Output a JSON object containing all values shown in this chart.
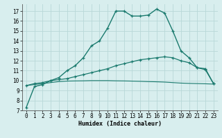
{
  "xlabel": "Humidex (Indice chaleur)",
  "x_ticks": [
    0,
    1,
    2,
    3,
    4,
    5,
    6,
    7,
    8,
    9,
    10,
    11,
    12,
    13,
    14,
    15,
    16,
    17,
    18,
    19,
    20,
    21,
    22,
    23
  ],
  "y_ticks": [
    7,
    8,
    9,
    10,
    11,
    12,
    13,
    14,
    15,
    16,
    17
  ],
  "xlim": [
    -0.5,
    23.5
  ],
  "ylim": [
    7.0,
    17.7
  ],
  "bg_color": "#d8eeee",
  "line_color": "#1a7a6e",
  "grid_color": "#b8d8d8",
  "curve1_x": [
    0,
    1,
    2,
    3,
    4,
    5,
    6,
    7,
    8,
    9,
    10,
    11,
    12,
    13,
    14,
    15,
    16,
    17,
    18,
    19,
    20,
    21,
    22,
    23
  ],
  "curve1_y": [
    7.3,
    9.4,
    9.6,
    10.0,
    10.3,
    11.0,
    11.5,
    12.3,
    13.5,
    14.0,
    15.3,
    17.0,
    17.0,
    16.5,
    16.5,
    16.6,
    17.2,
    16.8,
    15.0,
    13.0,
    12.3,
    11.3,
    11.2,
    9.7
  ],
  "curve2_x": [
    0,
    1,
    2,
    3,
    4,
    5,
    6,
    7,
    8,
    9,
    10,
    11,
    12,
    13,
    14,
    15,
    16,
    17,
    18,
    19,
    20,
    21,
    22,
    23
  ],
  "curve2_y": [
    9.5,
    9.7,
    9.8,
    10.0,
    10.1,
    10.2,
    10.4,
    10.6,
    10.8,
    11.0,
    11.2,
    11.5,
    11.7,
    11.9,
    12.1,
    12.2,
    12.3,
    12.4,
    12.3,
    12.0,
    11.8,
    11.3,
    11.1,
    9.7
  ],
  "curve3_x": [
    0,
    1,
    2,
    3,
    4,
    5,
    6,
    7,
    8,
    9,
    10,
    11,
    12,
    13,
    14,
    15,
    16,
    17,
    18,
    19,
    20,
    21,
    22,
    23
  ],
  "curve3_y": [
    9.5,
    9.6,
    9.7,
    9.8,
    9.9,
    9.95,
    9.97,
    9.98,
    10.0,
    10.0,
    10.0,
    9.98,
    9.97,
    9.95,
    9.93,
    9.9,
    9.88,
    9.85,
    9.8,
    9.75,
    9.72,
    9.7,
    9.68,
    9.65
  ],
  "tick_fontsize": 5.5,
  "xlabel_fontsize": 6.0,
  "lw1": 1.0,
  "lw2": 0.9,
  "lw3": 0.8,
  "marker_size": 3.5,
  "marker_lw": 0.9
}
